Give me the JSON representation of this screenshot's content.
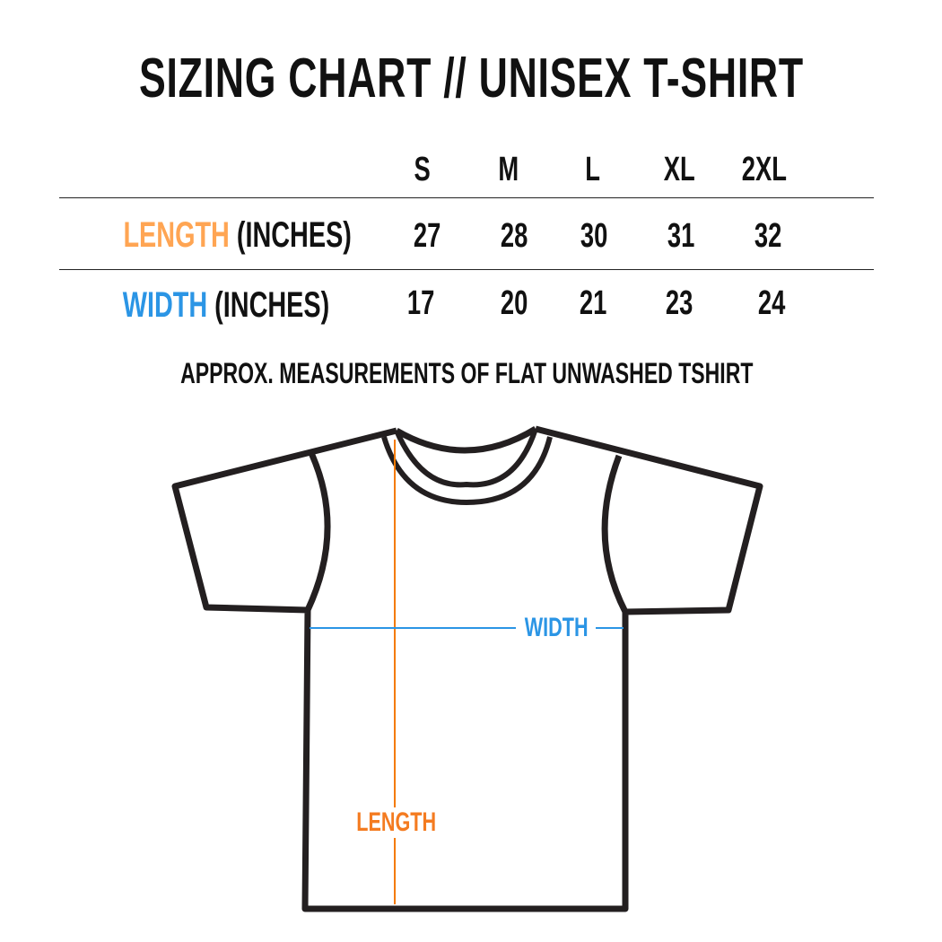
{
  "title": "SIZING CHART  //  UNISEX T-SHIRT",
  "colors": {
    "length": "#FFA553",
    "width": "#2B95E5",
    "length_line": "#F47B00",
    "outline": "#231F20"
  },
  "chart_data": {
    "type": "table",
    "columns": [
      "S",
      "M",
      "L",
      "XL",
      "2XL"
    ],
    "rows": [
      {
        "label": "LENGTH",
        "unit": "(INCHES)",
        "values": [
          27,
          28,
          30,
          31,
          32
        ]
      },
      {
        "label": "WIDTH",
        "unit": "(INCHES)",
        "values": [
          17,
          20,
          21,
          23,
          24
        ]
      }
    ]
  },
  "note": "APPROX. MEASUREMENTS OF FLAT UNWASHED TSHIRT",
  "diagram": {
    "width_label": "WIDTH",
    "length_label": "LENGTH"
  }
}
